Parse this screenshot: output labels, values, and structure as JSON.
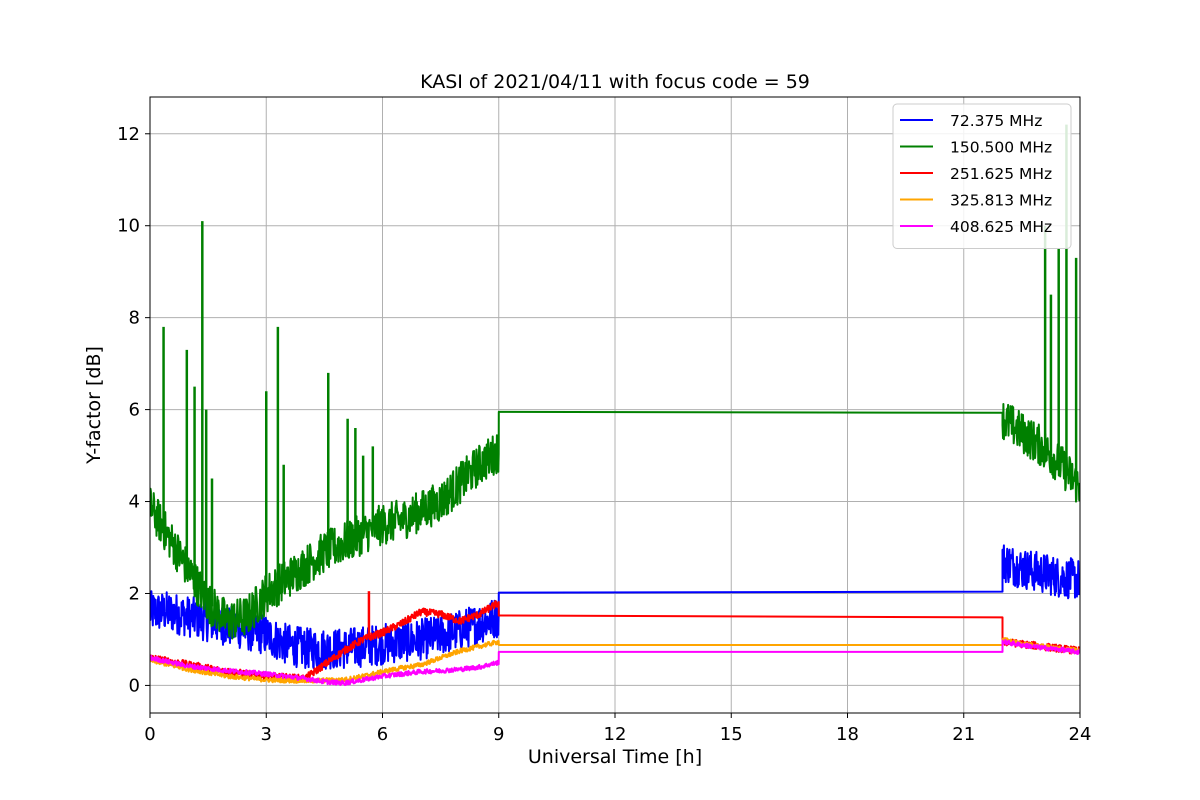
{
  "chart_data": {
    "type": "line",
    "title": "KASI of 2021/04/11 with focus code = 59",
    "xlabel": "Universal Time [h]",
    "ylabel": "Y-factor [dB]",
    "xlim": [
      0,
      24
    ],
    "ylim": [
      -0.6,
      12.8
    ],
    "xticks": [
      0,
      3,
      6,
      9,
      12,
      15,
      18,
      21,
      24
    ],
    "yticks": [
      0,
      2,
      4,
      6,
      8,
      10,
      12
    ],
    "grid": true,
    "legend_position": "top-right",
    "series": [
      {
        "name": " 72.375 MHz",
        "color": "#0000ff",
        "x": [
          0,
          0.5,
          1,
          1.5,
          2,
          2.5,
          3,
          3.5,
          4,
          4.5,
          5,
          5.5,
          6,
          6.5,
          7,
          7.5,
          8,
          8.5,
          9,
          9,
          22,
          22,
          22.5,
          23,
          23.5,
          24
        ],
        "y": [
          1.6,
          1.6,
          1.5,
          1.4,
          1.3,
          1.2,
          1.1,
          0.9,
          0.8,
          0.8,
          0.8,
          0.85,
          0.9,
          0.95,
          1.0,
          1.1,
          1.2,
          1.35,
          1.5,
          2.02,
          2.04,
          2.7,
          2.55,
          2.45,
          2.35,
          2.3
        ],
        "noise": 0.45
      },
      {
        "name": "150.500 MHz",
        "color": "#008000",
        "x": [
          0,
          0.5,
          1,
          1.5,
          2,
          2.5,
          3,
          3.5,
          4,
          4.5,
          5,
          5.5,
          6,
          6.5,
          7,
          7.5,
          8,
          8.5,
          9,
          9,
          22,
          22,
          22.5,
          23,
          23.5,
          24
        ],
        "y": [
          3.9,
          3.2,
          2.5,
          1.8,
          1.4,
          1.5,
          2.0,
          2.3,
          2.6,
          2.9,
          3.1,
          3.3,
          3.5,
          3.6,
          3.8,
          4.0,
          4.4,
          4.8,
          5.1,
          5.95,
          5.93,
          5.8,
          5.5,
          5.2,
          4.8,
          4.3
        ],
        "noise": 0.45
      },
      {
        "name": "251.625 MHz",
        "color": "#ff0000",
        "x": [
          0,
          1,
          2,
          3,
          4,
          4.5,
          5,
          5.5,
          6,
          6.5,
          7,
          7.5,
          8,
          8.5,
          9,
          9,
          22,
          22,
          22.5,
          23,
          23.5,
          24
        ],
        "y": [
          0.6,
          0.45,
          0.3,
          0.2,
          0.15,
          0.45,
          0.75,
          1.0,
          1.15,
          1.35,
          1.6,
          1.55,
          1.4,
          1.55,
          1.8,
          1.52,
          1.48,
          0.95,
          0.9,
          0.85,
          0.8,
          0.75
        ],
        "noise": 0.08
      },
      {
        "name": "325.813 MHz",
        "color": "#ffa500",
        "x": [
          0,
          1,
          2,
          3,
          4,
          5,
          5.5,
          6,
          6.5,
          7,
          7.5,
          8,
          8.5,
          9,
          9,
          22,
          22,
          22.5,
          23,
          23.5,
          24
        ],
        "y": [
          0.55,
          0.35,
          0.2,
          0.12,
          0.1,
          0.12,
          0.2,
          0.3,
          0.38,
          0.45,
          0.6,
          0.75,
          0.85,
          0.95,
          0.88,
          0.88,
          1.0,
          0.9,
          0.85,
          0.8,
          0.75
        ],
        "noise": 0.05
      },
      {
        "name": "408.625 MHz",
        "color": "#ff00ff",
        "x": [
          0,
          1,
          2,
          3,
          4,
          4.5,
          5,
          5.5,
          6,
          6.5,
          7,
          7.5,
          8,
          8.5,
          9,
          9,
          22,
          22,
          22.5,
          23,
          23.5,
          24
        ],
        "y": [
          0.6,
          0.42,
          0.32,
          0.25,
          0.15,
          0.08,
          0.05,
          0.12,
          0.2,
          0.25,
          0.3,
          0.32,
          0.35,
          0.4,
          0.5,
          0.73,
          0.73,
          0.95,
          0.88,
          0.82,
          0.78,
          0.72
        ],
        "noise": 0.05
      }
    ],
    "spikes": [
      {
        "series": 1,
        "x": 0.35,
        "y": 7.8
      },
      {
        "series": 1,
        "x": 0.95,
        "y": 7.3
      },
      {
        "series": 1,
        "x": 1.15,
        "y": 6.5
      },
      {
        "series": 1,
        "x": 1.35,
        "y": 10.1
      },
      {
        "series": 1,
        "x": 1.45,
        "y": 6.0
      },
      {
        "series": 1,
        "x": 1.6,
        "y": 4.5
      },
      {
        "series": 1,
        "x": 3.0,
        "y": 6.4
      },
      {
        "series": 1,
        "x": 3.3,
        "y": 7.8
      },
      {
        "series": 1,
        "x": 3.45,
        "y": 4.8
      },
      {
        "series": 1,
        "x": 4.6,
        "y": 6.8
      },
      {
        "series": 1,
        "x": 5.1,
        "y": 5.8
      },
      {
        "series": 1,
        "x": 5.3,
        "y": 5.6
      },
      {
        "series": 1,
        "x": 5.5,
        "y": 5.0
      },
      {
        "series": 1,
        "x": 5.75,
        "y": 5.2
      },
      {
        "series": 1,
        "x": 23.1,
        "y": 10.0
      },
      {
        "series": 1,
        "x": 23.25,
        "y": 8.5
      },
      {
        "series": 1,
        "x": 23.45,
        "y": 9.5
      },
      {
        "series": 1,
        "x": 23.65,
        "y": 12.2
      },
      {
        "series": 1,
        "x": 23.9,
        "y": 9.3
      },
      {
        "series": 2,
        "x": 5.65,
        "y": 2.05
      }
    ]
  }
}
